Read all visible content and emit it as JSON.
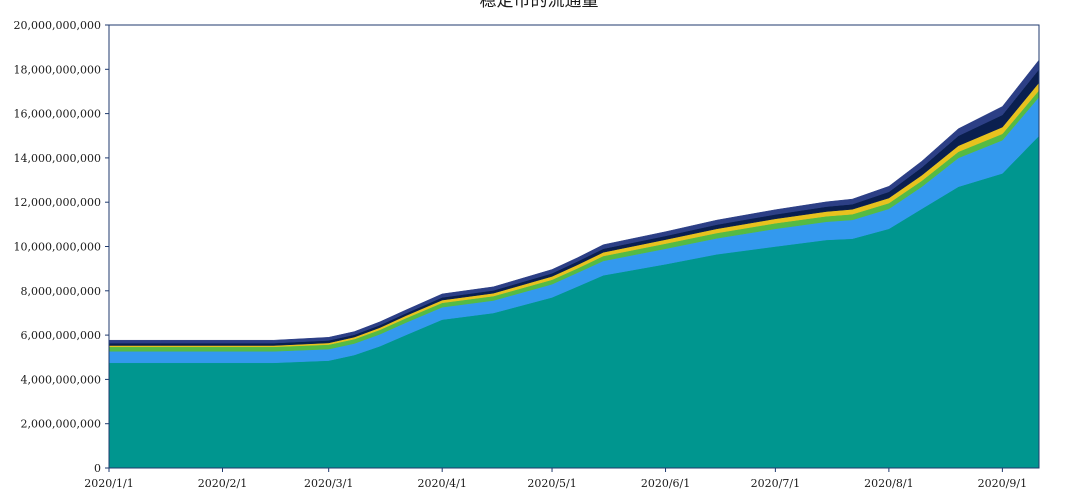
{
  "chart_data": {
    "type": "area",
    "stacked": true,
    "title": "稳定币的流通量",
    "xlabel": "",
    "ylabel": "",
    "ylim": [
      0,
      20000000000
    ],
    "yticks": [
      0,
      2000000000,
      4000000000,
      6000000000,
      8000000000,
      10000000000,
      12000000000,
      14000000000,
      16000000000,
      18000000000,
      20000000000
    ],
    "ytick_labels": [
      "0",
      "2,000,000,000",
      "4,000,000,000",
      "6,000,000,000",
      "8,000,000,000",
      "10,000,000,000",
      "12,000,000,000",
      "14,000,000,000",
      "16,000,000,000",
      "18,000,000,000",
      "20,000,000,000"
    ],
    "xlim": [
      "2020-01-01",
      "2020-09-11"
    ],
    "xticks": [
      "2020-01-01",
      "2020-02-01",
      "2020-03-01",
      "2020-04-01",
      "2020-05-01",
      "2020-06-01",
      "2020-07-01",
      "2020-08-01",
      "2020-09-01"
    ],
    "xtick_labels": [
      "2020/1/1",
      "2020/2/1",
      "2020/3/1",
      "2020/4/1",
      "2020/5/1",
      "2020/6/1",
      "2020/7/1",
      "2020/8/1",
      "2020/9/1"
    ],
    "grid": false,
    "legend": "none",
    "x": [
      "2020-01-01",
      "2020-01-15",
      "2020-02-01",
      "2020-02-15",
      "2020-03-01",
      "2020-03-08",
      "2020-03-15",
      "2020-03-22",
      "2020-04-01",
      "2020-04-15",
      "2020-05-01",
      "2020-05-08",
      "2020-05-15",
      "2020-06-01",
      "2020-06-15",
      "2020-07-01",
      "2020-07-15",
      "2020-07-22",
      "2020-08-01",
      "2020-08-10",
      "2020-08-20",
      "2020-09-01",
      "2020-09-11"
    ],
    "series": [
      {
        "color": "#00968f",
        "values": [
          4750000000,
          4750000000,
          4750000000,
          4750000000,
          4850000000,
          5100000000,
          5500000000,
          6000000000,
          6700000000,
          7000000000,
          7700000000,
          8200000000,
          8700000000,
          9200000000,
          9650000000,
          10000000000,
          10300000000,
          10350000000,
          10800000000,
          11700000000,
          12700000000,
          13300000000,
          15000000000
        ]
      },
      {
        "color": "#3399ee",
        "values": [
          520000000,
          520000000,
          520000000,
          520000000,
          520000000,
          520000000,
          540000000,
          560000000,
          560000000,
          560000000,
          600000000,
          620000000,
          650000000,
          700000000,
          720000000,
          800000000,
          820000000,
          850000000,
          900000000,
          1000000000,
          1300000000,
          1500000000,
          1750000000
        ]
      },
      {
        "color": "#55bb44",
        "values": [
          200000000,
          200000000,
          200000000,
          200000000,
          200000000,
          200000000,
          200000000,
          200000000,
          200000000,
          200000000,
          200000000,
          200000000,
          220000000,
          230000000,
          240000000,
          250000000,
          250000000,
          260000000,
          260000000,
          270000000,
          280000000,
          290000000,
          300000000
        ]
      },
      {
        "color": "#e8c21e",
        "values": [
          60000000,
          60000000,
          60000000,
          60000000,
          80000000,
          90000000,
          100000000,
          110000000,
          120000000,
          130000000,
          150000000,
          160000000,
          170000000,
          180000000,
          190000000,
          200000000,
          210000000,
          220000000,
          230000000,
          250000000,
          270000000,
          300000000,
          350000000
        ]
      },
      {
        "color": "#0a1f4f",
        "values": [
          110000000,
          110000000,
          110000000,
          110000000,
          110000000,
          110000000,
          110000000,
          110000000,
          120000000,
          130000000,
          140000000,
          150000000,
          160000000,
          170000000,
          190000000,
          200000000,
          220000000,
          230000000,
          280000000,
          350000000,
          450000000,
          550000000,
          600000000
        ]
      },
      {
        "color": "#2c3f86",
        "values": [
          130000000,
          130000000,
          130000000,
          130000000,
          140000000,
          140000000,
          150000000,
          150000000,
          160000000,
          160000000,
          170000000,
          170000000,
          180000000,
          190000000,
          200000000,
          210000000,
          220000000,
          230000000,
          250000000,
          280000000,
          320000000,
          380000000,
          420000000
        ]
      }
    ]
  }
}
